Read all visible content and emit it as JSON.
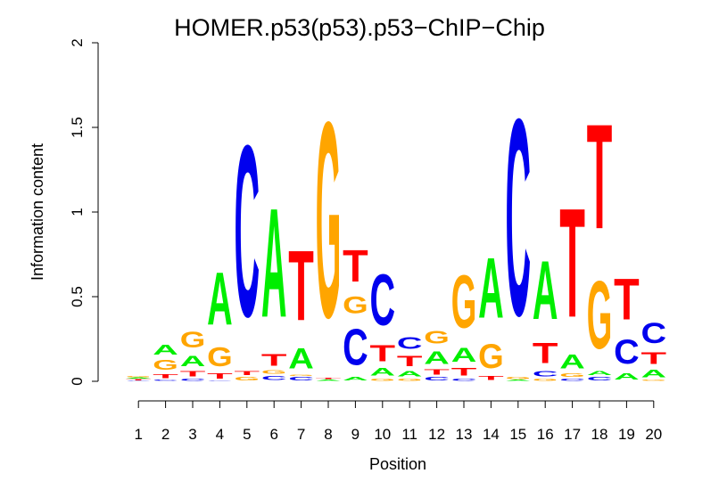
{
  "chart_data": {
    "type": "sequence-logo",
    "title": "HOMER.p53(p53).p53−ChIP−Chip",
    "xlabel": "Position",
    "ylabel": "Information content",
    "ylim": [
      0,
      2
    ],
    "yticks": [
      "0",
      "0.5",
      "1",
      "1.5",
      "2"
    ],
    "ytick_values": [
      0,
      0.5,
      1,
      1.5,
      2
    ],
    "positions": [
      "1",
      "2",
      "3",
      "4",
      "5",
      "6",
      "7",
      "8",
      "9",
      "10",
      "11",
      "12",
      "13",
      "14",
      "15",
      "16",
      "17",
      "18",
      "19",
      "20"
    ],
    "colors": {
      "A": "#00ee00",
      "C": "#0000ee",
      "G": "#ffa500",
      "T": "#ff0000"
    },
    "stacks": [
      [
        [
          "C",
          0.005
        ],
        [
          "T",
          0.008
        ],
        [
          "A",
          0.01
        ],
        [
          "G",
          0.01
        ]
      ],
      [
        [
          "C",
          0.01
        ],
        [
          "T",
          0.04
        ],
        [
          "G",
          0.09
        ],
        [
          "A",
          0.09
        ]
      ],
      [
        [
          "C",
          0.02
        ],
        [
          "T",
          0.05
        ],
        [
          "A",
          0.1
        ],
        [
          "G",
          0.15
        ]
      ],
      [
        [
          "C",
          0.005
        ],
        [
          "T",
          0.05
        ],
        [
          "G",
          0.18
        ],
        [
          "A",
          0.5
        ]
      ],
      [
        [
          "G",
          0.03
        ],
        [
          "T",
          0.04
        ],
        [
          "C",
          1.62
        ]
      ],
      [
        [
          "C",
          0.04
        ],
        [
          "G",
          0.03
        ],
        [
          "T",
          0.11
        ],
        [
          "A",
          1.03
        ]
      ],
      [
        [
          "C",
          0.03
        ],
        [
          "G",
          0.01
        ],
        [
          "A",
          0.19
        ],
        [
          "T",
          0.66
        ]
      ],
      [
        [
          "A",
          0.01
        ],
        [
          "T",
          0.01
        ],
        [
          "G",
          1.85
        ]
      ],
      [
        [
          "A",
          0.03
        ],
        [
          "C",
          0.34
        ],
        [
          "G",
          0.16
        ],
        [
          "T",
          0.3
        ]
      ],
      [
        [
          "G",
          0.02
        ],
        [
          "A",
          0.07
        ],
        [
          "T",
          0.15
        ],
        [
          "C",
          0.48
        ]
      ],
      [
        [
          "G",
          0.02
        ],
        [
          "A",
          0.05
        ],
        [
          "T",
          0.1
        ],
        [
          "C",
          0.11
        ]
      ],
      [
        [
          "C",
          0.03
        ],
        [
          "T",
          0.05
        ],
        [
          "A",
          0.12
        ],
        [
          "G",
          0.12
        ]
      ],
      [
        [
          "C",
          0.02
        ],
        [
          "T",
          0.07
        ],
        [
          "A",
          0.13
        ],
        [
          "G",
          0.5
        ]
      ],
      [
        [
          "T",
          0.035
        ],
        [
          "G",
          0.23
        ],
        [
          "A",
          0.57
        ]
      ],
      [
        [
          "A",
          0.01
        ],
        [
          "G",
          0.02
        ],
        [
          "C",
          1.86
        ]
      ],
      [
        [
          "G",
          0.02
        ],
        [
          "C",
          0.05
        ],
        [
          "T",
          0.19
        ],
        [
          "A",
          0.55
        ]
      ],
      [
        [
          "C",
          0.02
        ],
        [
          "G",
          0.03
        ],
        [
          "A",
          0.13
        ],
        [
          "T",
          1.03
        ]
      ],
      [
        [
          "C",
          0.03
        ],
        [
          "A",
          0.04
        ],
        [
          "G",
          0.64
        ],
        [
          "T",
          0.99
        ]
      ],
      [
        [
          "A",
          0.06
        ],
        [
          "C",
          0.23
        ],
        [
          "T",
          0.39
        ]
      ],
      [
        [
          "G",
          0.01
        ],
        [
          "A",
          0.07
        ],
        [
          "T",
          0.11
        ],
        [
          "C",
          0.19
        ]
      ]
    ]
  }
}
